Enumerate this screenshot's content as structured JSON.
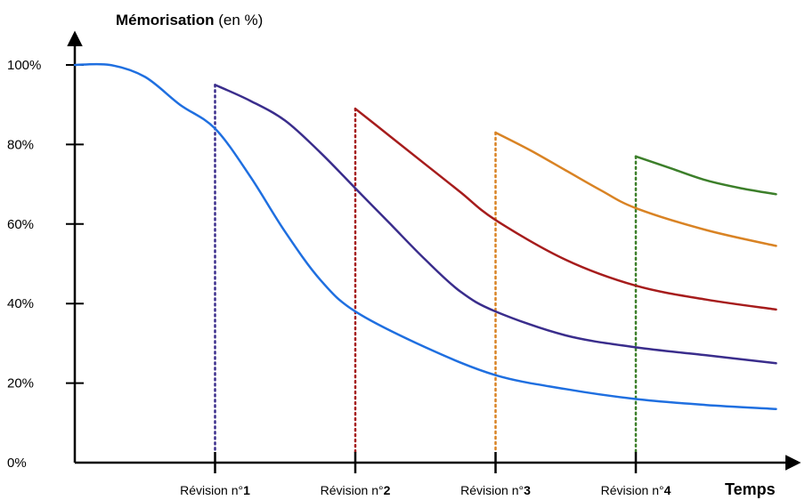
{
  "chart_data": {
    "type": "line",
    "title": "Mémorisation",
    "title_suffix": " (en %)",
    "xlabel": "Temps",
    "ylabel": "",
    "ylim": [
      0,
      100
    ],
    "yticks": [
      "0%",
      "20%",
      "40%",
      "60%",
      "80%",
      "100%"
    ],
    "ytick_values": [
      0,
      20,
      40,
      60,
      80,
      100
    ],
    "revisions": [
      {
        "prefix": "Révision n°",
        "num": "1",
        "x": 1,
        "color": "#3a2d8c"
      },
      {
        "prefix": "Révision n°",
        "num": "2",
        "x": 2,
        "color": "#a61c1c"
      },
      {
        "prefix": "Révision n°",
        "num": "3",
        "x": 3,
        "color": "#d98324"
      },
      {
        "prefix": "Révision n°",
        "num": "4",
        "x": 4,
        "color": "#3c7f2a"
      }
    ],
    "grid": false,
    "legend": "none",
    "series": [
      {
        "color": "#1f6fe0",
        "points": [
          [
            0,
            100
          ],
          [
            0.25,
            100
          ],
          [
            0.5,
            97
          ],
          [
            0.75,
            90
          ],
          [
            1,
            84
          ],
          [
            1.25,
            72
          ],
          [
            1.5,
            58
          ],
          [
            1.75,
            46
          ],
          [
            2,
            38
          ],
          [
            2.5,
            29
          ],
          [
            3,
            22
          ],
          [
            3.5,
            18.5
          ],
          [
            4,
            16
          ],
          [
            4.5,
            14.5
          ],
          [
            5,
            13.5
          ]
        ]
      },
      {
        "color": "#3a2d8c",
        "points": [
          [
            1,
            95
          ],
          [
            1.25,
            91
          ],
          [
            1.5,
            86
          ],
          [
            1.75,
            78
          ],
          [
            2,
            69
          ],
          [
            2.25,
            60
          ],
          [
            2.5,
            51
          ],
          [
            2.75,
            43
          ],
          [
            3,
            38
          ],
          [
            3.5,
            32
          ],
          [
            4,
            29
          ],
          [
            4.5,
            27
          ],
          [
            5,
            25
          ]
        ]
      },
      {
        "color": "#a61c1c",
        "points": [
          [
            2,
            89
          ],
          [
            2.25,
            82
          ],
          [
            2.5,
            75
          ],
          [
            2.75,
            68
          ],
          [
            3,
            61
          ],
          [
            3.5,
            51
          ],
          [
            4,
            44.5
          ],
          [
            4.5,
            41
          ],
          [
            5,
            38.5
          ]
        ]
      },
      {
        "color": "#d98324",
        "points": [
          [
            3,
            83
          ],
          [
            3.25,
            78.5
          ],
          [
            3.5,
            73.5
          ],
          [
            3.75,
            68.5
          ],
          [
            4,
            64
          ],
          [
            4.5,
            58.5
          ],
          [
            5,
            54.5
          ]
        ]
      },
      {
        "color": "#3c7f2a",
        "points": [
          [
            4,
            77
          ],
          [
            4.25,
            74
          ],
          [
            4.5,
            71
          ],
          [
            4.75,
            69
          ],
          [
            5,
            67.5
          ]
        ]
      }
    ]
  }
}
